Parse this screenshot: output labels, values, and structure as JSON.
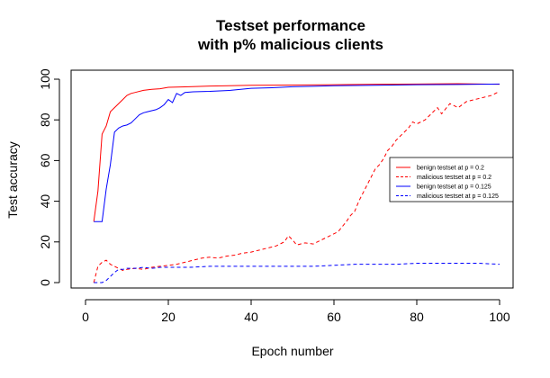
{
  "chart_data": {
    "type": "line",
    "title_lines": [
      "Testset performance",
      "with p% malicious clients"
    ],
    "xlabel": "Epoch number",
    "ylabel": "Test accuracy",
    "xlim": [
      0,
      104
    ],
    "ylim": [
      -3,
      104
    ],
    "x_ticks": [
      0,
      20,
      40,
      60,
      80,
      100
    ],
    "y_ticks": [
      0,
      20,
      40,
      60,
      80,
      100
    ],
    "legend_position": "right",
    "series": [
      {
        "name": "benign testset at p = 0.2",
        "color": "#ff0000",
        "dash": "solid",
        "points": [
          [
            2,
            30
          ],
          [
            3,
            45
          ],
          [
            4,
            73
          ],
          [
            5,
            77
          ],
          [
            6,
            84
          ],
          [
            7,
            86
          ],
          [
            8,
            88
          ],
          [
            9,
            90
          ],
          [
            10,
            92
          ],
          [
            11,
            93
          ],
          [
            12,
            93.5
          ],
          [
            14,
            94.5
          ],
          [
            16,
            95
          ],
          [
            18,
            95.3
          ],
          [
            20,
            96
          ],
          [
            25,
            96.3
          ],
          [
            30,
            96.6
          ],
          [
            40,
            97
          ],
          [
            50,
            97.1
          ],
          [
            60,
            97.3
          ],
          [
            70,
            97.5
          ],
          [
            80,
            97.6
          ],
          [
            90,
            97.8
          ],
          [
            100,
            97.5
          ]
        ]
      },
      {
        "name": "malicious testset at p = 0.2",
        "color": "#ff0000",
        "dash": "dashed",
        "points": [
          [
            2,
            0
          ],
          [
            3,
            8
          ],
          [
            4,
            10
          ],
          [
            5,
            11
          ],
          [
            6,
            9
          ],
          [
            7,
            8
          ],
          [
            8,
            7
          ],
          [
            9,
            6
          ],
          [
            10,
            6.5
          ],
          [
            12,
            7
          ],
          [
            14,
            6.5
          ],
          [
            16,
            7.5
          ],
          [
            18,
            8
          ],
          [
            20,
            8.5
          ],
          [
            22,
            9
          ],
          [
            24,
            10
          ],
          [
            26,
            11
          ],
          [
            28,
            12
          ],
          [
            30,
            12.5
          ],
          [
            32,
            12
          ],
          [
            34,
            13
          ],
          [
            36,
            13.5
          ],
          [
            38,
            14.5
          ],
          [
            40,
            15
          ],
          [
            42,
            16
          ],
          [
            44,
            17
          ],
          [
            46,
            18
          ],
          [
            48,
            20
          ],
          [
            49,
            23
          ],
          [
            50,
            21
          ],
          [
            51,
            18.5
          ],
          [
            53,
            19.5
          ],
          [
            55,
            19
          ],
          [
            57,
            21
          ],
          [
            59,
            23
          ],
          [
            61,
            25
          ],
          [
            63,
            30
          ],
          [
            64,
            33
          ],
          [
            65,
            35
          ],
          [
            66,
            40
          ],
          [
            67,
            44
          ],
          [
            68,
            48
          ],
          [
            69,
            52
          ],
          [
            70,
            56
          ],
          [
            71,
            58
          ],
          [
            72,
            61
          ],
          [
            73,
            65
          ],
          [
            74,
            67
          ],
          [
            75,
            70
          ],
          [
            76,
            72
          ],
          [
            77,
            74
          ],
          [
            78,
            76
          ],
          [
            79,
            79
          ],
          [
            80,
            78
          ],
          [
            82,
            80
          ],
          [
            84,
            84
          ],
          [
            85,
            86
          ],
          [
            86,
            83
          ],
          [
            88,
            88
          ],
          [
            90,
            86
          ],
          [
            92,
            89
          ],
          [
            94,
            90
          ],
          [
            96,
            91
          ],
          [
            98,
            92
          ],
          [
            100,
            94
          ]
        ]
      },
      {
        "name": "benign testset at p = 0.125",
        "color": "#0000ff",
        "dash": "solid",
        "points": [
          [
            2,
            30
          ],
          [
            3,
            30
          ],
          [
            4,
            30
          ],
          [
            5,
            46
          ],
          [
            6,
            58
          ],
          [
            7,
            74
          ],
          [
            8,
            76
          ],
          [
            9,
            77
          ],
          [
            10,
            77.5
          ],
          [
            11,
            78.5
          ],
          [
            12,
            80.5
          ],
          [
            13,
            82.5
          ],
          [
            14,
            83.5
          ],
          [
            15,
            84
          ],
          [
            16,
            84.5
          ],
          [
            17,
            85
          ],
          [
            18,
            86
          ],
          [
            19,
            87.5
          ],
          [
            20,
            90
          ],
          [
            21,
            88.5
          ],
          [
            22,
            93
          ],
          [
            23,
            92
          ],
          [
            24,
            93.5
          ],
          [
            26,
            93.8
          ],
          [
            30,
            94
          ],
          [
            35,
            94.5
          ],
          [
            40,
            95.5
          ],
          [
            45,
            95.8
          ],
          [
            50,
            96.3
          ],
          [
            55,
            96.5
          ],
          [
            60,
            96.8
          ],
          [
            70,
            97
          ],
          [
            80,
            97.3
          ],
          [
            90,
            97.4
          ],
          [
            100,
            97.6
          ]
        ]
      },
      {
        "name": "malicious testset at p = 0.125",
        "color": "#0000ff",
        "dash": "dashed",
        "points": [
          [
            2,
            0
          ],
          [
            4,
            0
          ],
          [
            5,
            1
          ],
          [
            6,
            3
          ],
          [
            7,
            5
          ],
          [
            8,
            6.5
          ],
          [
            9,
            6.5
          ],
          [
            10,
            7
          ],
          [
            12,
            7
          ],
          [
            14,
            7.5
          ],
          [
            16,
            7
          ],
          [
            18,
            7.5
          ],
          [
            20,
            7.5
          ],
          [
            25,
            7.5
          ],
          [
            30,
            8
          ],
          [
            35,
            8
          ],
          [
            40,
            8
          ],
          [
            45,
            8
          ],
          [
            50,
            8
          ],
          [
            55,
            8
          ],
          [
            60,
            8.5
          ],
          [
            65,
            9
          ],
          [
            70,
            9
          ],
          [
            75,
            9
          ],
          [
            80,
            9.5
          ],
          [
            85,
            9.5
          ],
          [
            90,
            9.5
          ],
          [
            95,
            9.5
          ],
          [
            100,
            9
          ]
        ]
      }
    ]
  }
}
